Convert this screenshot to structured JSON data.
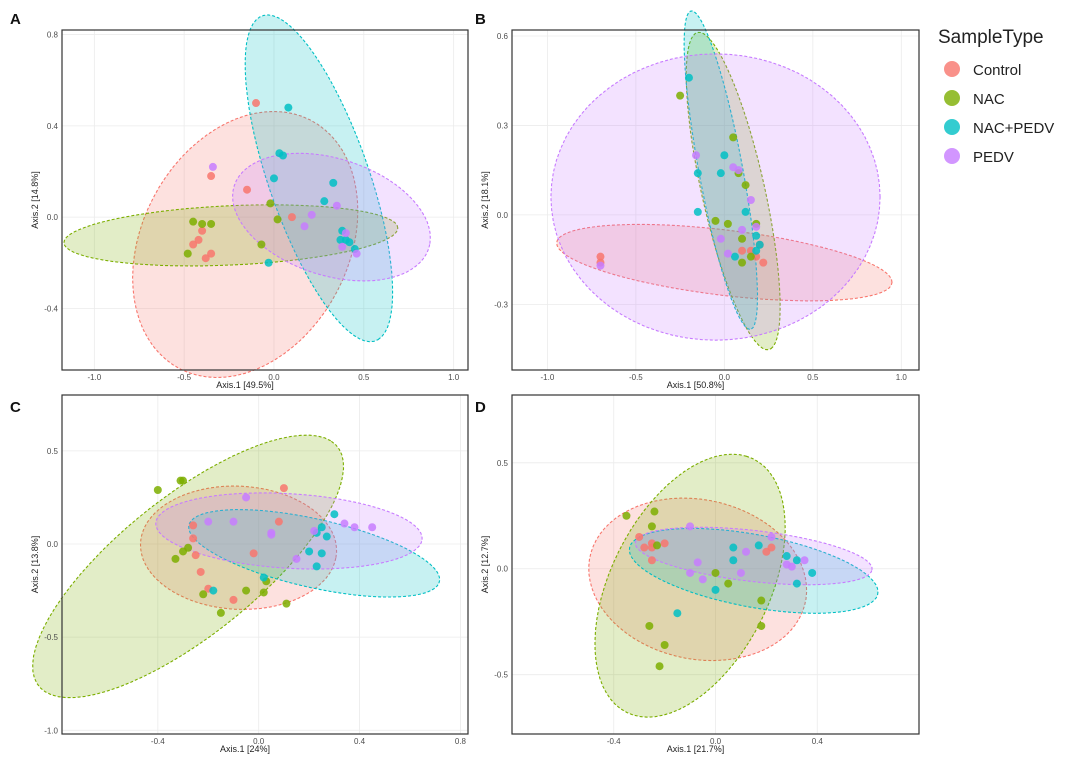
{
  "legend": {
    "title": "SampleType",
    "entries": [
      {
        "label": "Control",
        "color": "#F8766D"
      },
      {
        "label": "NAC",
        "color": "#7CAE00"
      },
      {
        "label": "NAC+PEDV",
        "color": "#00BFC4"
      },
      {
        "label": "PEDV",
        "color": "#C77CFF"
      }
    ]
  },
  "chart_data": [
    {
      "panel": "A",
      "type": "scatter",
      "xlabel": "Axis.1   [49.5%]",
      "ylabel": "Axis.2   [14.8%]",
      "xlim": [
        -1.18,
        1.08
      ],
      "ylim": [
        -0.67,
        0.82
      ],
      "xticks": [
        {
          "v": -1.0,
          "label": "-1.0"
        },
        {
          "v": -0.5,
          "label": "-0.5"
        },
        {
          "v": 0.0,
          "label": "0.0"
        },
        {
          "v": 0.5,
          "label": "0.5"
        },
        {
          "v": 1.0,
          "label": "1.0"
        }
      ],
      "yticks": [
        {
          "v": -0.4,
          "label": "-0.4"
        },
        {
          "v": 0.0,
          "label": "0.0"
        },
        {
          "v": 0.4,
          "label": "0.4"
        },
        {
          "v": 0.8,
          "label": "0.8"
        }
      ],
      "series": [
        {
          "name": "Control",
          "points": [
            [
              -0.1,
              0.5
            ],
            [
              -0.35,
              0.18
            ],
            [
              -0.15,
              0.12
            ],
            [
              -0.45,
              -0.12
            ],
            [
              -0.4,
              -0.06
            ],
            [
              -0.35,
              -0.16
            ],
            [
              -0.38,
              -0.18
            ],
            [
              -0.42,
              -0.1
            ],
            [
              0.1,
              0.0
            ]
          ],
          "ellipse": {
            "cx": -0.16,
            "cy": -0.12,
            "rx": 0.68,
            "ry": 0.52,
            "angle": 37
          }
        },
        {
          "name": "NAC",
          "points": [
            [
              -0.45,
              -0.02
            ],
            [
              -0.4,
              -0.03
            ],
            [
              -0.35,
              -0.03
            ],
            [
              -0.48,
              -0.16
            ],
            [
              -0.07,
              -0.12
            ],
            [
              0.02,
              -0.01
            ],
            [
              -0.02,
              0.06
            ]
          ],
          "ellipse": {
            "cx": -0.24,
            "cy": -0.08,
            "rx": 0.93,
            "ry": 0.13,
            "angle": 2
          }
        },
        {
          "name": "NAC+PEDV",
          "points": [
            [
              0.08,
              0.48
            ],
            [
              0.03,
              0.28
            ],
            [
              0.05,
              0.27
            ],
            [
              0.0,
              0.17
            ],
            [
              0.33,
              0.15
            ],
            [
              0.28,
              0.07
            ],
            [
              0.38,
              -0.06
            ],
            [
              0.4,
              -0.1
            ],
            [
              0.37,
              -0.1
            ],
            [
              0.45,
              -0.14
            ],
            [
              0.42,
              -0.11
            ],
            [
              -0.03,
              -0.2
            ]
          ],
          "ellipse": {
            "cx": 0.25,
            "cy": 0.17,
            "rx": 0.78,
            "ry": 0.27,
            "angle": -65
          }
        },
        {
          "name": "PEDV",
          "points": [
            [
              -0.34,
              0.22
            ],
            [
              0.17,
              -0.04
            ],
            [
              0.35,
              0.05
            ],
            [
              0.4,
              -0.07
            ],
            [
              0.38,
              -0.13
            ],
            [
              0.46,
              -0.16
            ],
            [
              0.21,
              0.01
            ]
          ],
          "ellipse": {
            "cx": 0.32,
            "cy": 0.0,
            "rx": 0.56,
            "ry": 0.26,
            "angle": -12
          }
        }
      ]
    },
    {
      "panel": "B",
      "type": "scatter",
      "xlabel": "Axis.1   [50.8%]",
      "ylabel": "Axis.2   [18.1%]",
      "xlim": [
        -1.2,
        1.1
      ],
      "ylim": [
        -0.52,
        0.62
      ],
      "xticks": [
        {
          "v": -1.0,
          "label": "-1.0"
        },
        {
          "v": -0.5,
          "label": "-0.5"
        },
        {
          "v": 0.0,
          "label": "0.0"
        },
        {
          "v": 0.5,
          "label": "0.5"
        },
        {
          "v": 1.0,
          "label": "1.0"
        }
      ],
      "yticks": [
        {
          "v": -0.3,
          "label": "-0.3"
        },
        {
          "v": 0.0,
          "label": "0.0"
        },
        {
          "v": 0.3,
          "label": "0.3"
        },
        {
          "v": 0.6,
          "label": "0.6"
        }
      ],
      "series": [
        {
          "name": "Control",
          "points": [
            [
              -0.7,
              -0.14
            ],
            [
              -0.7,
              -0.16
            ],
            [
              0.2,
              -0.1
            ],
            [
              0.15,
              -0.12
            ],
            [
              0.22,
              -0.16
            ],
            [
              0.18,
              -0.14
            ],
            [
              0.1,
              -0.12
            ]
          ],
          "ellipse": {
            "cx": 0.0,
            "cy": -0.16,
            "rx": 0.95,
            "ry": 0.11,
            "angle": -4
          }
        },
        {
          "name": "NAC",
          "points": [
            [
              -0.25,
              0.4
            ],
            [
              0.05,
              0.26
            ],
            [
              0.08,
              0.14
            ],
            [
              0.12,
              0.1
            ],
            [
              -0.05,
              -0.02
            ],
            [
              0.02,
              -0.03
            ],
            [
              0.1,
              -0.08
            ],
            [
              0.18,
              -0.03
            ],
            [
              0.15,
              -0.14
            ],
            [
              0.1,
              -0.16
            ]
          ],
          "ellipse": {
            "cx": 0.05,
            "cy": 0.08,
            "rx": 0.57,
            "ry": 0.17,
            "angle": -68
          }
        },
        {
          "name": "NAC+PEDV",
          "points": [
            [
              -0.2,
              0.46
            ],
            [
              -0.15,
              0.14
            ],
            [
              -0.02,
              0.14
            ],
            [
              -0.15,
              0.01
            ],
            [
              0.0,
              0.2
            ],
            [
              0.12,
              0.01
            ],
            [
              0.18,
              -0.07
            ],
            [
              0.2,
              -0.1
            ],
            [
              0.06,
              -0.14
            ],
            [
              0.18,
              -0.12
            ]
          ],
          "ellipse": {
            "cx": -0.02,
            "cy": 0.15,
            "rx": 0.56,
            "ry": 0.12,
            "angle": -72
          }
        },
        {
          "name": "PEDV",
          "points": [
            [
              -0.7,
              -0.17
            ],
            [
              -0.16,
              0.2
            ],
            [
              0.05,
              0.16
            ],
            [
              0.08,
              0.15
            ],
            [
              0.15,
              0.05
            ],
            [
              0.18,
              -0.04
            ],
            [
              0.1,
              -0.05
            ],
            [
              -0.02,
              -0.08
            ],
            [
              0.02,
              -0.13
            ]
          ],
          "ellipse": {
            "cx": -0.05,
            "cy": 0.06,
            "rx": 0.93,
            "ry": 0.48,
            "angle": 0
          }
        }
      ]
    },
    {
      "panel": "C",
      "type": "scatter",
      "xlabel": "Axis.1   [24%]",
      "ylabel": "Axis.2   [13.8%]",
      "xlim": [
        -0.78,
        0.83
      ],
      "ylim": [
        -1.02,
        0.8
      ],
      "xticks": [
        {
          "v": -0.4,
          "label": "-0.4"
        },
        {
          "v": 0.0,
          "label": "0.0"
        },
        {
          "v": 0.4,
          "label": "0.4"
        },
        {
          "v": 0.8,
          "label": "0.8"
        }
      ],
      "yticks": [
        {
          "v": -1.0,
          "label": "-1.0"
        },
        {
          "v": -0.5,
          "label": "-0.5"
        },
        {
          "v": 0.0,
          "label": "0.0"
        },
        {
          "v": 0.5,
          "label": "0.5"
        }
      ],
      "series": [
        {
          "name": "Control",
          "points": [
            [
              -0.26,
              0.1
            ],
            [
              -0.26,
              0.03
            ],
            [
              -0.25,
              -0.06
            ],
            [
              -0.23,
              -0.15
            ],
            [
              -0.1,
              -0.3
            ],
            [
              -0.2,
              -0.24
            ],
            [
              -0.02,
              -0.05
            ],
            [
              0.1,
              0.3
            ],
            [
              0.08,
              0.12
            ]
          ],
          "ellipse": {
            "cx": -0.08,
            "cy": -0.02,
            "rx": 0.39,
            "ry": 0.33,
            "angle": -8
          }
        },
        {
          "name": "NAC",
          "points": [
            [
              -0.4,
              0.29
            ],
            [
              -0.3,
              0.34
            ],
            [
              -0.31,
              0.34
            ],
            [
              -0.28,
              -0.02
            ],
            [
              -0.3,
              -0.04
            ],
            [
              -0.33,
              -0.08
            ],
            [
              -0.22,
              -0.27
            ],
            [
              -0.15,
              -0.37
            ],
            [
              -0.05,
              -0.25
            ],
            [
              0.03,
              -0.2
            ],
            [
              0.11,
              -0.32
            ],
            [
              0.02,
              -0.26
            ]
          ],
          "ellipse": {
            "cx": -0.28,
            "cy": -0.12,
            "rx": 0.88,
            "ry": 0.32,
            "angle": 50
          }
        },
        {
          "name": "NAC+PEDV",
          "points": [
            [
              -0.18,
              -0.25
            ],
            [
              0.02,
              -0.18
            ],
            [
              0.2,
              -0.04
            ],
            [
              0.23,
              0.06
            ],
            [
              0.27,
              0.04
            ],
            [
              0.3,
              0.16
            ],
            [
              0.25,
              0.09
            ],
            [
              0.23,
              -0.12
            ],
            [
              0.25,
              -0.05
            ]
          ],
          "ellipse": {
            "cx": 0.22,
            "cy": -0.05,
            "rx": 0.52,
            "ry": 0.18,
            "angle": -18
          }
        },
        {
          "name": "PEDV",
          "points": [
            [
              -0.1,
              0.12
            ],
            [
              -0.2,
              0.12
            ],
            [
              -0.05,
              0.25
            ],
            [
              0.05,
              0.05
            ],
            [
              0.15,
              -0.08
            ],
            [
              0.22,
              0.07
            ],
            [
              0.38,
              0.09
            ],
            [
              0.45,
              0.09
            ],
            [
              0.34,
              0.11
            ],
            [
              0.05,
              0.06
            ]
          ],
          "ellipse": {
            "cx": 0.12,
            "cy": 0.07,
            "rx": 0.53,
            "ry": 0.2,
            "angle": -5
          }
        }
      ]
    },
    {
      "panel": "D",
      "type": "scatter",
      "xlabel": "Axis.1   [21.7%]",
      "ylabel": "Axis.2   [12.7%]",
      "xlim": [
        -0.8,
        0.8
      ],
      "ylim": [
        -0.78,
        0.82
      ],
      "xticks": [
        {
          "v": -0.4,
          "label": "-0.4"
        },
        {
          "v": 0.0,
          "label": "0.0"
        },
        {
          "v": 0.4,
          "label": "0.4"
        }
      ],
      "yticks": [
        {
          "v": -0.5,
          "label": "-0.5"
        },
        {
          "v": 0.0,
          "label": "0.0"
        },
        {
          "v": 0.5,
          "label": "0.5"
        }
      ],
      "series": [
        {
          "name": "Control",
          "points": [
            [
              -0.3,
              0.15
            ],
            [
              -0.25,
              0.12
            ],
            [
              -0.2,
              0.12
            ],
            [
              -0.28,
              0.1
            ],
            [
              -0.25,
              0.1
            ],
            [
              -0.25,
              0.04
            ],
            [
              0.2,
              0.08
            ],
            [
              0.22,
              0.1
            ]
          ],
          "ellipse": {
            "cx": -0.07,
            "cy": -0.05,
            "rx": 0.44,
            "ry": 0.37,
            "angle": -25
          }
        },
        {
          "name": "NAC",
          "points": [
            [
              -0.35,
              0.25
            ],
            [
              -0.24,
              0.27
            ],
            [
              -0.25,
              0.2
            ],
            [
              -0.23,
              0.11
            ],
            [
              -0.26,
              -0.27
            ],
            [
              -0.2,
              -0.36
            ],
            [
              -0.22,
              -0.46
            ],
            [
              0.05,
              -0.07
            ],
            [
              0.0,
              -0.02
            ],
            [
              0.18,
              -0.15
            ],
            [
              0.18,
              -0.27
            ]
          ],
          "ellipse": {
            "cx": -0.1,
            "cy": -0.08,
            "rx": 0.65,
            "ry": 0.32,
            "angle": 70
          }
        },
        {
          "name": "NAC+PEDV",
          "points": [
            [
              -0.15,
              -0.21
            ],
            [
              0.0,
              -0.1
            ],
            [
              0.07,
              0.1
            ],
            [
              0.07,
              0.04
            ],
            [
              0.17,
              0.11
            ],
            [
              0.28,
              0.06
            ],
            [
              0.32,
              0.04
            ],
            [
              0.32,
              -0.07
            ],
            [
              0.38,
              -0.02
            ]
          ],
          "ellipse": {
            "cx": 0.15,
            "cy": -0.01,
            "rx": 0.5,
            "ry": 0.17,
            "angle": -13
          }
        },
        {
          "name": "PEDV",
          "points": [
            [
              -0.1,
              0.2
            ],
            [
              -0.07,
              0.03
            ],
            [
              -0.1,
              -0.02
            ],
            [
              -0.05,
              -0.05
            ],
            [
              0.1,
              -0.02
            ],
            [
              0.12,
              0.08
            ],
            [
              0.22,
              0.15
            ],
            [
              0.35,
              0.04
            ],
            [
              0.3,
              0.01
            ],
            [
              0.28,
              0.02
            ]
          ],
          "ellipse": {
            "cx": 0.15,
            "cy": 0.06,
            "rx": 0.47,
            "ry": 0.12,
            "angle": -8
          }
        }
      ]
    }
  ]
}
